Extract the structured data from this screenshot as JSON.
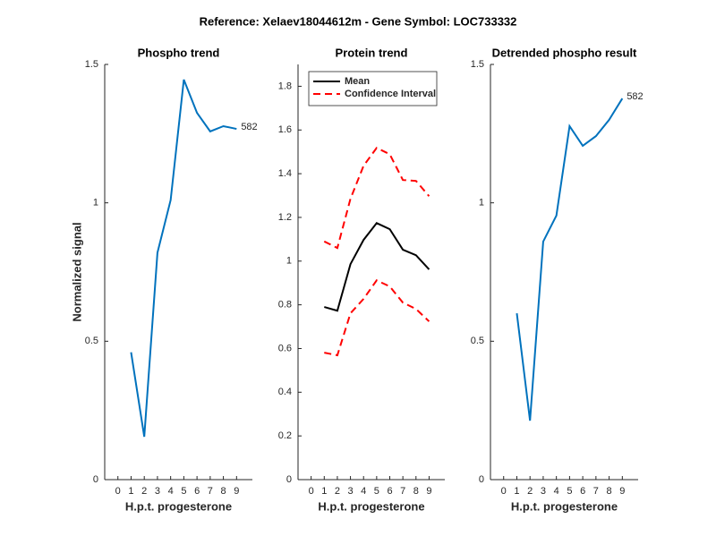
{
  "title": "Reference:  Xelaev18044612m - Gene Symbol:  LOC733332",
  "chart_data": [
    {
      "type": "line",
      "title": "Phospho trend",
      "ylabel": "Normalized signal",
      "xlabel": "H.p.t. progesterone",
      "x": [
        1,
        2,
        3,
        4,
        5,
        6,
        7,
        8,
        9
      ],
      "series": [
        {
          "color": "#0072bd",
          "values": [
            0.46,
            0.155,
            0.82,
            1.01,
            1.445,
            1.325,
            1.258,
            1.277,
            1.267
          ]
        }
      ],
      "annotation": "582",
      "xlim": [
        -1,
        10.2
      ],
      "xticks": [
        0,
        1,
        2,
        3,
        4,
        5,
        6,
        7,
        8,
        9
      ],
      "ylim": [
        0,
        1.5
      ],
      "yticks": [
        0,
        0.5,
        1,
        1.5
      ]
    },
    {
      "type": "line",
      "title": "Protein trend",
      "xlabel": "H.p.t. progesterone",
      "x": [
        1,
        2,
        3,
        4,
        5,
        6,
        7,
        8,
        9
      ],
      "series": [
        {
          "name": "Mean",
          "color": "#000000",
          "values": [
            0.79,
            0.773,
            0.986,
            1.097,
            1.174,
            1.146,
            1.052,
            1.027,
            0.962
          ]
        },
        {
          "name": "Confidence Interval",
          "color": "#ff0000",
          "dashed": true,
          "upper": [
            1.09,
            1.06,
            1.285,
            1.436,
            1.518,
            1.489,
            1.371,
            1.367,
            1.297
          ],
          "lower": [
            0.581,
            0.569,
            0.761,
            0.827,
            0.912,
            0.884,
            0.81,
            0.781,
            0.724
          ]
        }
      ],
      "legend": "upper left",
      "xlim": [
        -1,
        10.2
      ],
      "xticks": [
        0,
        1,
        2,
        3,
        4,
        5,
        6,
        7,
        8,
        9
      ],
      "ylim": [
        0,
        1.9
      ],
      "yticks": [
        0,
        0.2,
        0.4,
        0.6,
        0.8,
        1,
        1.2,
        1.4,
        1.6,
        1.8
      ]
    },
    {
      "type": "line",
      "title": "Detrended phospho result",
      "xlabel": "H.p.t. progesterone",
      "x": [
        1,
        2,
        3,
        4,
        5,
        6,
        7,
        8,
        9
      ],
      "series": [
        {
          "color": "#0072bd",
          "values": [
            0.601,
            0.213,
            0.86,
            0.954,
            1.277,
            1.206,
            1.241,
            1.3,
            1.377
          ]
        }
      ],
      "annotation": "582",
      "xlim": [
        -1,
        10.2
      ],
      "xticks": [
        0,
        1,
        2,
        3,
        4,
        5,
        6,
        7,
        8,
        9
      ],
      "ylim": [
        0,
        1.5
      ],
      "yticks": [
        0,
        0.5,
        1,
        1.5
      ]
    }
  ]
}
